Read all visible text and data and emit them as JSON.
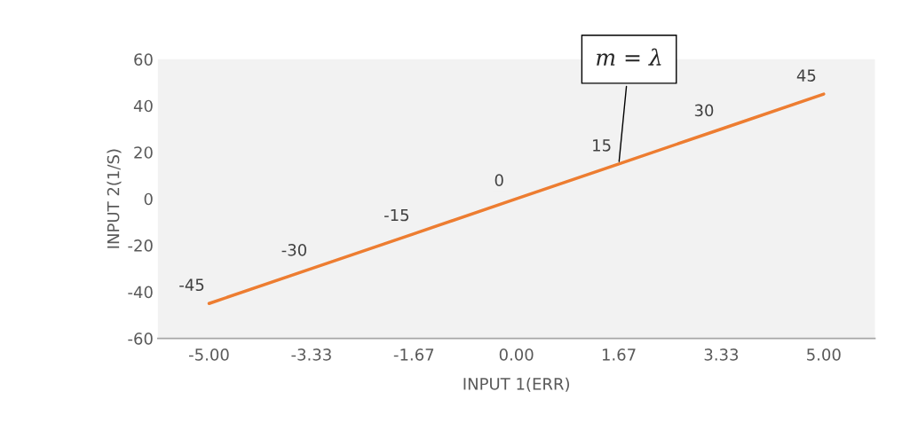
{
  "chart_data": {
    "type": "line",
    "categories": [
      "-5.00",
      "-3.33",
      "-1.67",
      "0.00",
      "1.67",
      "3.33",
      "5.00"
    ],
    "series": [
      {
        "color": "#ed7d31",
        "values": [
          -45,
          -30,
          -15,
          0,
          15,
          30,
          45
        ]
      }
    ],
    "xlabel": "INPUT 1(ERR)",
    "ylabel": "INPUT 2(1/S)",
    "ylim": [
      -60,
      60
    ],
    "yticks": [
      -60,
      -40,
      -20,
      0,
      20,
      40,
      60
    ],
    "data_labels": true,
    "grid": false,
    "legend": false,
    "marker": "none",
    "line_style": "solid",
    "annotations": [
      {
        "text": "m = λ",
        "x": "1.67",
        "y": 15
      }
    ]
  }
}
